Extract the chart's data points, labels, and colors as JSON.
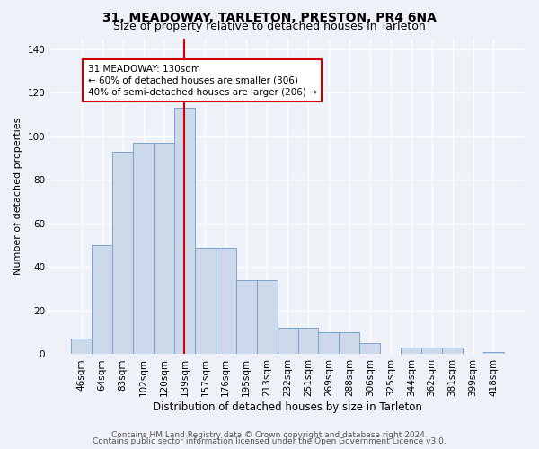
{
  "title1": "31, MEADOWAY, TARLETON, PRESTON, PR4 6NA",
  "title2": "Size of property relative to detached houses in Tarleton",
  "xlabel": "Distribution of detached houses by size in Tarleton",
  "ylabel": "Number of detached properties",
  "categories": [
    "46sqm",
    "64sqm",
    "83sqm",
    "102sqm",
    "120sqm",
    "139sqm",
    "157sqm",
    "176sqm",
    "195sqm",
    "213sqm",
    "232sqm",
    "251sqm",
    "269sqm",
    "288sqm",
    "306sqm",
    "325sqm",
    "344sqm",
    "362sqm",
    "381sqm",
    "399sqm",
    "418sqm"
  ],
  "values": [
    7,
    50,
    93,
    97,
    97,
    113,
    49,
    49,
    34,
    34,
    12,
    12,
    10,
    10,
    5,
    0,
    3,
    3,
    3,
    0,
    1
  ],
  "bar_color": "#ccd9eb",
  "bar_edge_color": "#7aa3cc",
  "property_line_x": 5.0,
  "property_line_color": "#cc0000",
  "annotation_text": "31 MEADOWAY: 130sqm\n← 60% of detached houses are smaller (306)\n40% of semi-detached houses are larger (206) →",
  "annotation_box_color": "white",
  "annotation_box_edge_color": "#cc0000",
  "ylim": [
    0,
    145
  ],
  "yticks": [
    0,
    20,
    40,
    60,
    80,
    100,
    120,
    140
  ],
  "footer1": "Contains HM Land Registry data © Crown copyright and database right 2024.",
  "footer2": "Contains public sector information licensed under the Open Government Licence v3.0.",
  "bg_color": "#eef2f8",
  "plot_bg_color": "#eef2f8",
  "grid_color": "white",
  "title1_fontsize": 10,
  "title2_fontsize": 9,
  "xlabel_fontsize": 8.5,
  "ylabel_fontsize": 8,
  "tick_fontsize": 7.5,
  "footer_fontsize": 6.5,
  "ann_fontsize": 7.5
}
